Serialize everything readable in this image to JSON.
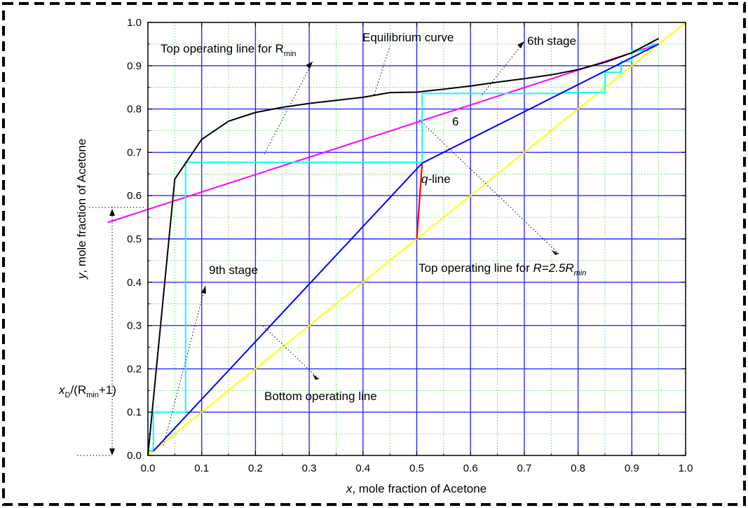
{
  "chart_data": {
    "type": "line",
    "title": "",
    "xlabel": "x, mole fraction of Acetone",
    "ylabel": "y, mole fraction of Acetone",
    "xlabel_var": "x",
    "xlabel_rest": ", mole fraction of Acetone",
    "ylabel_var": "y",
    "ylabel_rest": ", mole fraction of Acetone",
    "xlim": [
      0.0,
      1.0
    ],
    "ylim": [
      0.0,
      1.0
    ],
    "xticks": [
      "0.0",
      "0.1",
      "0.2",
      "0.3",
      "0.4",
      "0.5",
      "0.6",
      "0.7",
      "0.8",
      "0.9",
      "1.0"
    ],
    "yticks": [
      "0.0",
      "0.1",
      "0.2",
      "0.3",
      "0.4",
      "0.5",
      "0.6",
      "0.7",
      "0.8",
      "0.9",
      "1.0"
    ],
    "grid": true,
    "legend": "none",
    "series": [
      {
        "key": "equilibrium",
        "color": "#000000",
        "x": [
          0.0,
          0.05,
          0.1,
          0.15,
          0.2,
          0.25,
          0.3,
          0.35,
          0.4,
          0.45,
          0.5,
          0.55,
          0.6,
          0.65,
          0.7,
          0.75,
          0.8,
          0.85,
          0.9,
          0.95
        ],
        "y": [
          0.0,
          0.638,
          0.73,
          0.772,
          0.792,
          0.804,
          0.813,
          0.82,
          0.827,
          0.838,
          0.839,
          0.846,
          0.853,
          0.862,
          0.87,
          0.879,
          0.891,
          0.908,
          0.93,
          0.963
        ]
      },
      {
        "key": "diagonal",
        "color": "#ffff00",
        "x": [
          0.0,
          1.0
        ],
        "y": [
          0.0,
          1.0
        ]
      },
      {
        "key": "top_rmin",
        "color": "#ff00ff",
        "x": [
          -0.075,
          0.95
        ],
        "y": [
          0.538,
          0.95
        ]
      },
      {
        "key": "top_r25",
        "color": "#0000ff",
        "x": [
          0.51,
          0.95
        ],
        "y": [
          0.675,
          0.95
        ]
      },
      {
        "key": "bottom",
        "color": "#0000ff",
        "x": [
          0.01,
          0.51
        ],
        "y": [
          0.01,
          0.675
        ]
      },
      {
        "key": "q_line",
        "color": "#ff0000",
        "x": [
          0.5,
          0.51
        ],
        "y": [
          0.5,
          0.675
        ]
      },
      {
        "key": "stages",
        "color": "#00ffff",
        "x": [
          0.95,
          0.93,
          0.93,
          0.9,
          0.9,
          0.88,
          0.88,
          0.85,
          0.85,
          0.77,
          0.77,
          0.51,
          0.51,
          0.07,
          0.07,
          0.01,
          0.01,
          0.0
        ],
        "y": [
          0.95,
          0.95,
          0.935,
          0.935,
          0.91,
          0.91,
          0.885,
          0.885,
          0.838,
          0.838,
          0.836,
          0.836,
          0.677,
          0.677,
          0.1,
          0.1,
          0.01,
          0.01
        ]
      }
    ],
    "annotations": {
      "equilibrium": "Equilibrium curve",
      "top_rmin": "Top operating line for R",
      "top_rmin_sub": "min",
      "sixth_stage": "6th stage",
      "stage_number": "6",
      "q_line_var": "q",
      "q_line_rest": "-line",
      "ninth_stage": "9th stage",
      "top_r25_prefix": "Top operating line for ",
      "top_r25_expr": "R=2.5R",
      "top_r25_sub": "min",
      "bottom": "Bottom operating line",
      "intercept_var": "x",
      "intercept_var_sub": "D",
      "intercept_mid": "/(R",
      "intercept_sub": "min",
      "intercept_end": "+1)"
    }
  }
}
